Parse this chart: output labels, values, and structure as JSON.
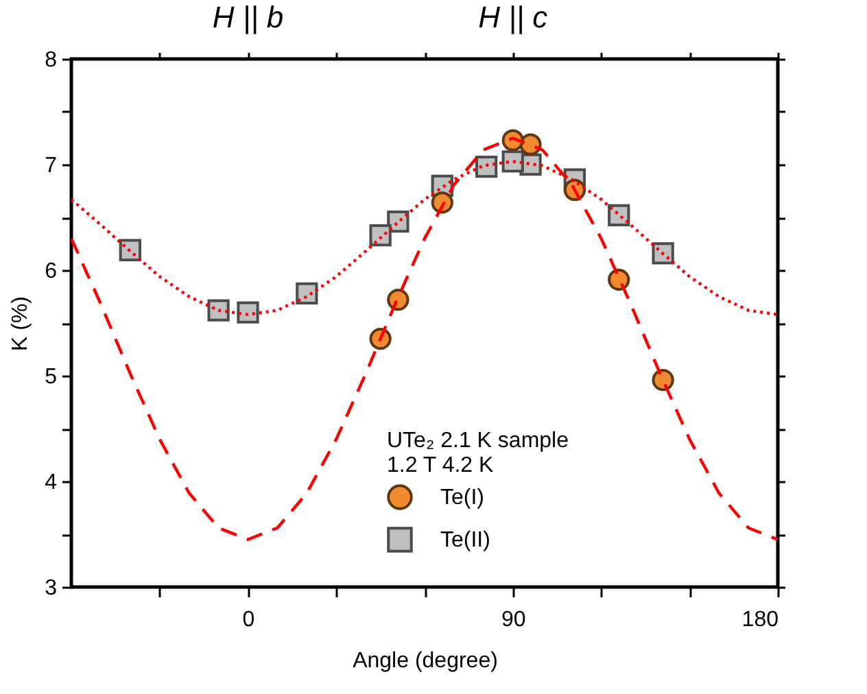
{
  "chart_data": {
    "type": "scatter",
    "xlabel": "Angle (degree)",
    "ylabel": "K (%)",
    "legend_title": "UTe₂ 2.1 K sample\n1.2 T 4.2 K",
    "annotations": [
      {
        "text": "H || b",
        "x": 0
      },
      {
        "text": "H || c",
        "x": 90
      }
    ],
    "xlim": [
      -60,
      180
    ],
    "xticks": [
      {
        "value": -30,
        "label": null
      },
      0,
      {
        "value": 30,
        "label": null
      },
      {
        "value": 60,
        "label": null
      },
      90,
      {
        "value": 120,
        "label": null
      },
      {
        "value": 150,
        "label": null
      },
      180
    ],
    "ylim": [
      3,
      8
    ],
    "yticks": [
      3,
      {
        "value": 3.5,
        "label": null
      },
      4,
      {
        "value": 4.5,
        "label": null
      },
      5,
      {
        "value": 5.5,
        "label": null
      },
      6,
      {
        "value": 6.5,
        "label": null
      },
      7,
      {
        "value": 7.5,
        "label": null
      },
      8
    ],
    "grid": false,
    "legend": "bottom right",
    "series": [
      {
        "name": "Te(I)",
        "marker": "circle",
        "color": "#f28a30",
        "x": [
          45,
          51,
          66,
          90,
          96,
          111,
          126,
          141
        ],
        "values": [
          5.35,
          5.72,
          6.64,
          7.23,
          7.19,
          6.76,
          5.91,
          4.96
        ]
      },
      {
        "name": "Te(II)",
        "marker": "square",
        "color": "#c0c0c0",
        "x": [
          -40,
          -10,
          0,
          20,
          45,
          51,
          66,
          81,
          90,
          96,
          111,
          126,
          141
        ],
        "values": [
          6.19,
          5.62,
          5.6,
          5.78,
          6.33,
          6.46,
          6.8,
          6.98,
          7.03,
          7.0,
          6.86,
          6.52,
          6.16
        ]
      },
      {
        "type": "line",
        "line_style": "dashed",
        "color": "#ff0000",
        "x": [
          -60,
          -50,
          -40,
          -30,
          -20,
          -10,
          0,
          10,
          20,
          30,
          40,
          50,
          60,
          70,
          80,
          90,
          100,
          110,
          120,
          130,
          140,
          150,
          160,
          170,
          180
        ],
        "values": [
          6.3,
          5.68,
          5.02,
          4.4,
          3.89,
          3.56,
          3.45,
          3.56,
          3.89,
          4.4,
          5.02,
          5.68,
          6.3,
          6.81,
          7.14,
          7.25,
          7.14,
          6.81,
          6.3,
          5.68,
          5.02,
          4.4,
          3.89,
          3.56,
          3.45
        ]
      },
      {
        "type": "line",
        "line_style": "dotted",
        "color": "#ff0000",
        "x": [
          -60,
          -50,
          -40,
          -30,
          -20,
          -10,
          0,
          10,
          20,
          30,
          40,
          50,
          60,
          70,
          80,
          90,
          100,
          110,
          120,
          130,
          140,
          150,
          160,
          170,
          180
        ],
        "values": [
          6.67,
          6.43,
          6.18,
          5.94,
          5.75,
          5.62,
          5.58,
          5.62,
          5.75,
          5.94,
          6.18,
          6.43,
          6.67,
          6.86,
          6.99,
          7.03,
          6.99,
          6.86,
          6.67,
          6.43,
          6.18,
          5.94,
          5.75,
          5.62,
          5.58
        ]
      }
    ]
  }
}
